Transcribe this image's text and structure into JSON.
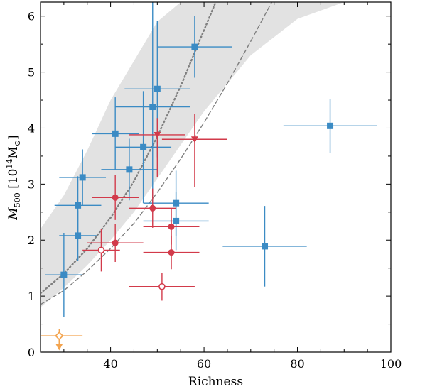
{
  "chart_data": {
    "type": "scatter",
    "xlabel": "Richness",
    "ylabel_main": "M",
    "ylabel_sub": "500",
    "ylabel_unit_prefix": " [10",
    "ylabel_unit_sup": "14",
    "ylabel_unit_suffix": "M",
    "ylabel_unit_sun": "⊙",
    "ylabel_unit_close": "]",
    "xlim": [
      25,
      100
    ],
    "ylim": [
      0,
      6.25
    ],
    "xticks": [
      40,
      60,
      80,
      100
    ],
    "yticks": [
      0,
      1,
      2,
      3,
      4,
      5,
      6
    ],
    "grid": false,
    "colors": {
      "blue": "#3b8bc4",
      "red": "#d23a4a",
      "orange": "#f3a44f",
      "band": "#e2e2e2",
      "relation": "#808080"
    },
    "band": {
      "upper": [
        [
          25,
          2.2
        ],
        [
          30,
          2.8
        ],
        [
          35,
          3.6
        ],
        [
          40,
          4.5
        ],
        [
          45,
          5.2
        ],
        [
          50,
          5.9
        ],
        [
          55,
          6.25
        ],
        [
          100,
          6.25
        ]
      ],
      "lower": [
        [
          25,
          0.8
        ],
        [
          30,
          1.15
        ],
        [
          35,
          1.55
        ],
        [
          40,
          2.0
        ],
        [
          45,
          2.5
        ],
        [
          50,
          3.1
        ],
        [
          55,
          3.7
        ],
        [
          60,
          4.3
        ],
        [
          70,
          5.3
        ],
        [
          80,
          5.95
        ],
        [
          90,
          6.25
        ],
        [
          100,
          6.25
        ]
      ]
    },
    "relations": [
      {
        "style": "dotted",
        "points": [
          [
            25,
            1.05
          ],
          [
            30,
            1.4
          ],
          [
            35,
            1.85
          ],
          [
            40,
            2.4
          ],
          [
            45,
            3.05
          ],
          [
            50,
            3.85
          ],
          [
            55,
            4.75
          ],
          [
            60,
            5.75
          ],
          [
            62.5,
            6.25
          ]
        ]
      },
      {
        "style": "dashed",
        "points": [
          [
            25,
            0.85
          ],
          [
            30,
            1.1
          ],
          [
            35,
            1.45
          ],
          [
            40,
            1.85
          ],
          [
            45,
            2.3
          ],
          [
            50,
            2.85
          ],
          [
            55,
            3.45
          ],
          [
            60,
            4.1
          ],
          [
            65,
            4.8
          ],
          [
            70,
            5.55
          ],
          [
            74.5,
            6.25
          ]
        ]
      }
    ],
    "series": [
      {
        "group": "blue",
        "marker": "square",
        "points": [
          {
            "x": 30,
            "y": 1.38,
            "xerr": 4,
            "yerr": 0.75
          },
          {
            "x": 33,
            "y": 2.08,
            "xerr": 4,
            "yerr": 0.45
          },
          {
            "x": 33,
            "y": 2.62,
            "xerr": 5,
            "yerr": 0.52
          },
          {
            "x": 34,
            "y": 3.12,
            "xerr": 5,
            "yerr": 0.5
          },
          {
            "x": 41,
            "y": 3.9,
            "xerr": 5,
            "yerr": 0.65
          },
          {
            "x": 44,
            "y": 3.26,
            "xerr": 6,
            "yerr": 0.55
          },
          {
            "x": 47,
            "y": 3.66,
            "xerr": 6,
            "yerr": 1.0
          },
          {
            "x": 49,
            "y": 4.38,
            "xerr": 8,
            "yerr": 1.9
          },
          {
            "x": 50,
            "y": 4.7,
            "xerr": 7,
            "yerr": 1.22
          },
          {
            "x": 54,
            "y": 2.66,
            "xerr": 7,
            "yerr": 0.58
          },
          {
            "x": 54,
            "y": 2.34,
            "xerr": 7,
            "yerr": 0.52
          },
          {
            "x": 58,
            "y": 5.45,
            "xerr": 8,
            "yerr": 0.55
          },
          {
            "x": 73,
            "y": 1.89,
            "xerr": 9,
            "yerr": 0.72
          },
          {
            "x": 87,
            "y": 4.04,
            "xerr": 10,
            "yerr": 0.48
          }
        ]
      },
      {
        "group": "red",
        "marker": "circle",
        "points": [
          {
            "x": 41,
            "y": 2.76,
            "xerr": 5,
            "yerr": 0.4
          },
          {
            "x": 41,
            "y": 1.95,
            "xerr": 6,
            "yerr": 0.34
          },
          {
            "x": 49,
            "y": 2.57,
            "xerr": 5,
            "yerr": 0.35
          },
          {
            "x": 53,
            "y": 2.24,
            "xerr": 6,
            "yerr": 0.32
          },
          {
            "x": 53,
            "y": 1.78,
            "xerr": 6,
            "yerr": 0.3
          }
        ]
      },
      {
        "group": "red",
        "marker": "open-circle",
        "points": [
          {
            "x": 38,
            "y": 1.82,
            "xerr": 4,
            "yerr": 0.38
          },
          {
            "x": 51,
            "y": 1.17,
            "xerr": 7,
            "yerr": 0.25
          }
        ]
      },
      {
        "group": "red",
        "marker": "triangle-down",
        "points": [
          {
            "x": 50,
            "y": 3.88,
            "xerr": 6,
            "yerr_low": 0.75,
            "yerr_high": 0.3
          },
          {
            "x": 58,
            "y": 3.8,
            "xerr": 7,
            "yerr_low": 0.85,
            "yerr_high": 0.45
          }
        ]
      },
      {
        "group": "orange",
        "marker": "open-diamond-upper-limit",
        "points": [
          {
            "x": 29,
            "y": 0.29,
            "xerr": 5,
            "yerr": 0.12
          }
        ]
      }
    ]
  }
}
